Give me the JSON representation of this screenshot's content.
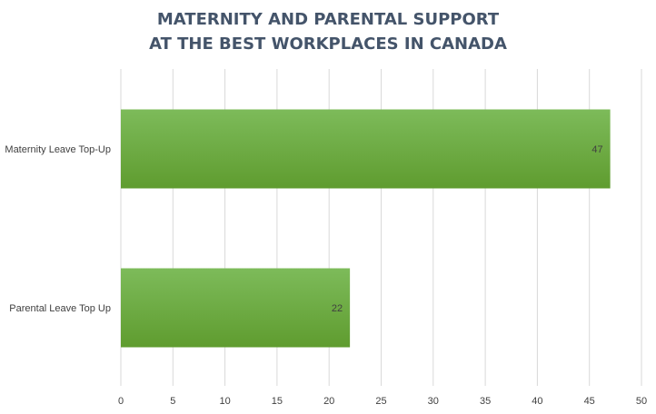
{
  "chart_data": {
    "type": "bar",
    "orientation": "horizontal",
    "title": [
      "MATERNITY AND PARENTAL SUPPORT",
      "AT THE BEST WORKPLACES IN CANADA"
    ],
    "categories": [
      "Maternity Leave Top-Up",
      "Parental Leave Top Up"
    ],
    "values": [
      47,
      22
    ],
    "data_labels": [
      "47",
      "22"
    ],
    "xlabel": "",
    "ylabel": "",
    "xlim": [
      0,
      50
    ],
    "x_ticks": [
      "0",
      "5",
      "10",
      "15",
      "20",
      "25",
      "30",
      "35",
      "40",
      "45",
      "50"
    ],
    "grid": "vertical",
    "legend": "none",
    "colors": {
      "bar_top": "#7dbb5a",
      "bar_bottom": "#5f9c2f",
      "grid": "#d9d9d9",
      "title": "#44546a",
      "text": "#404040"
    }
  }
}
